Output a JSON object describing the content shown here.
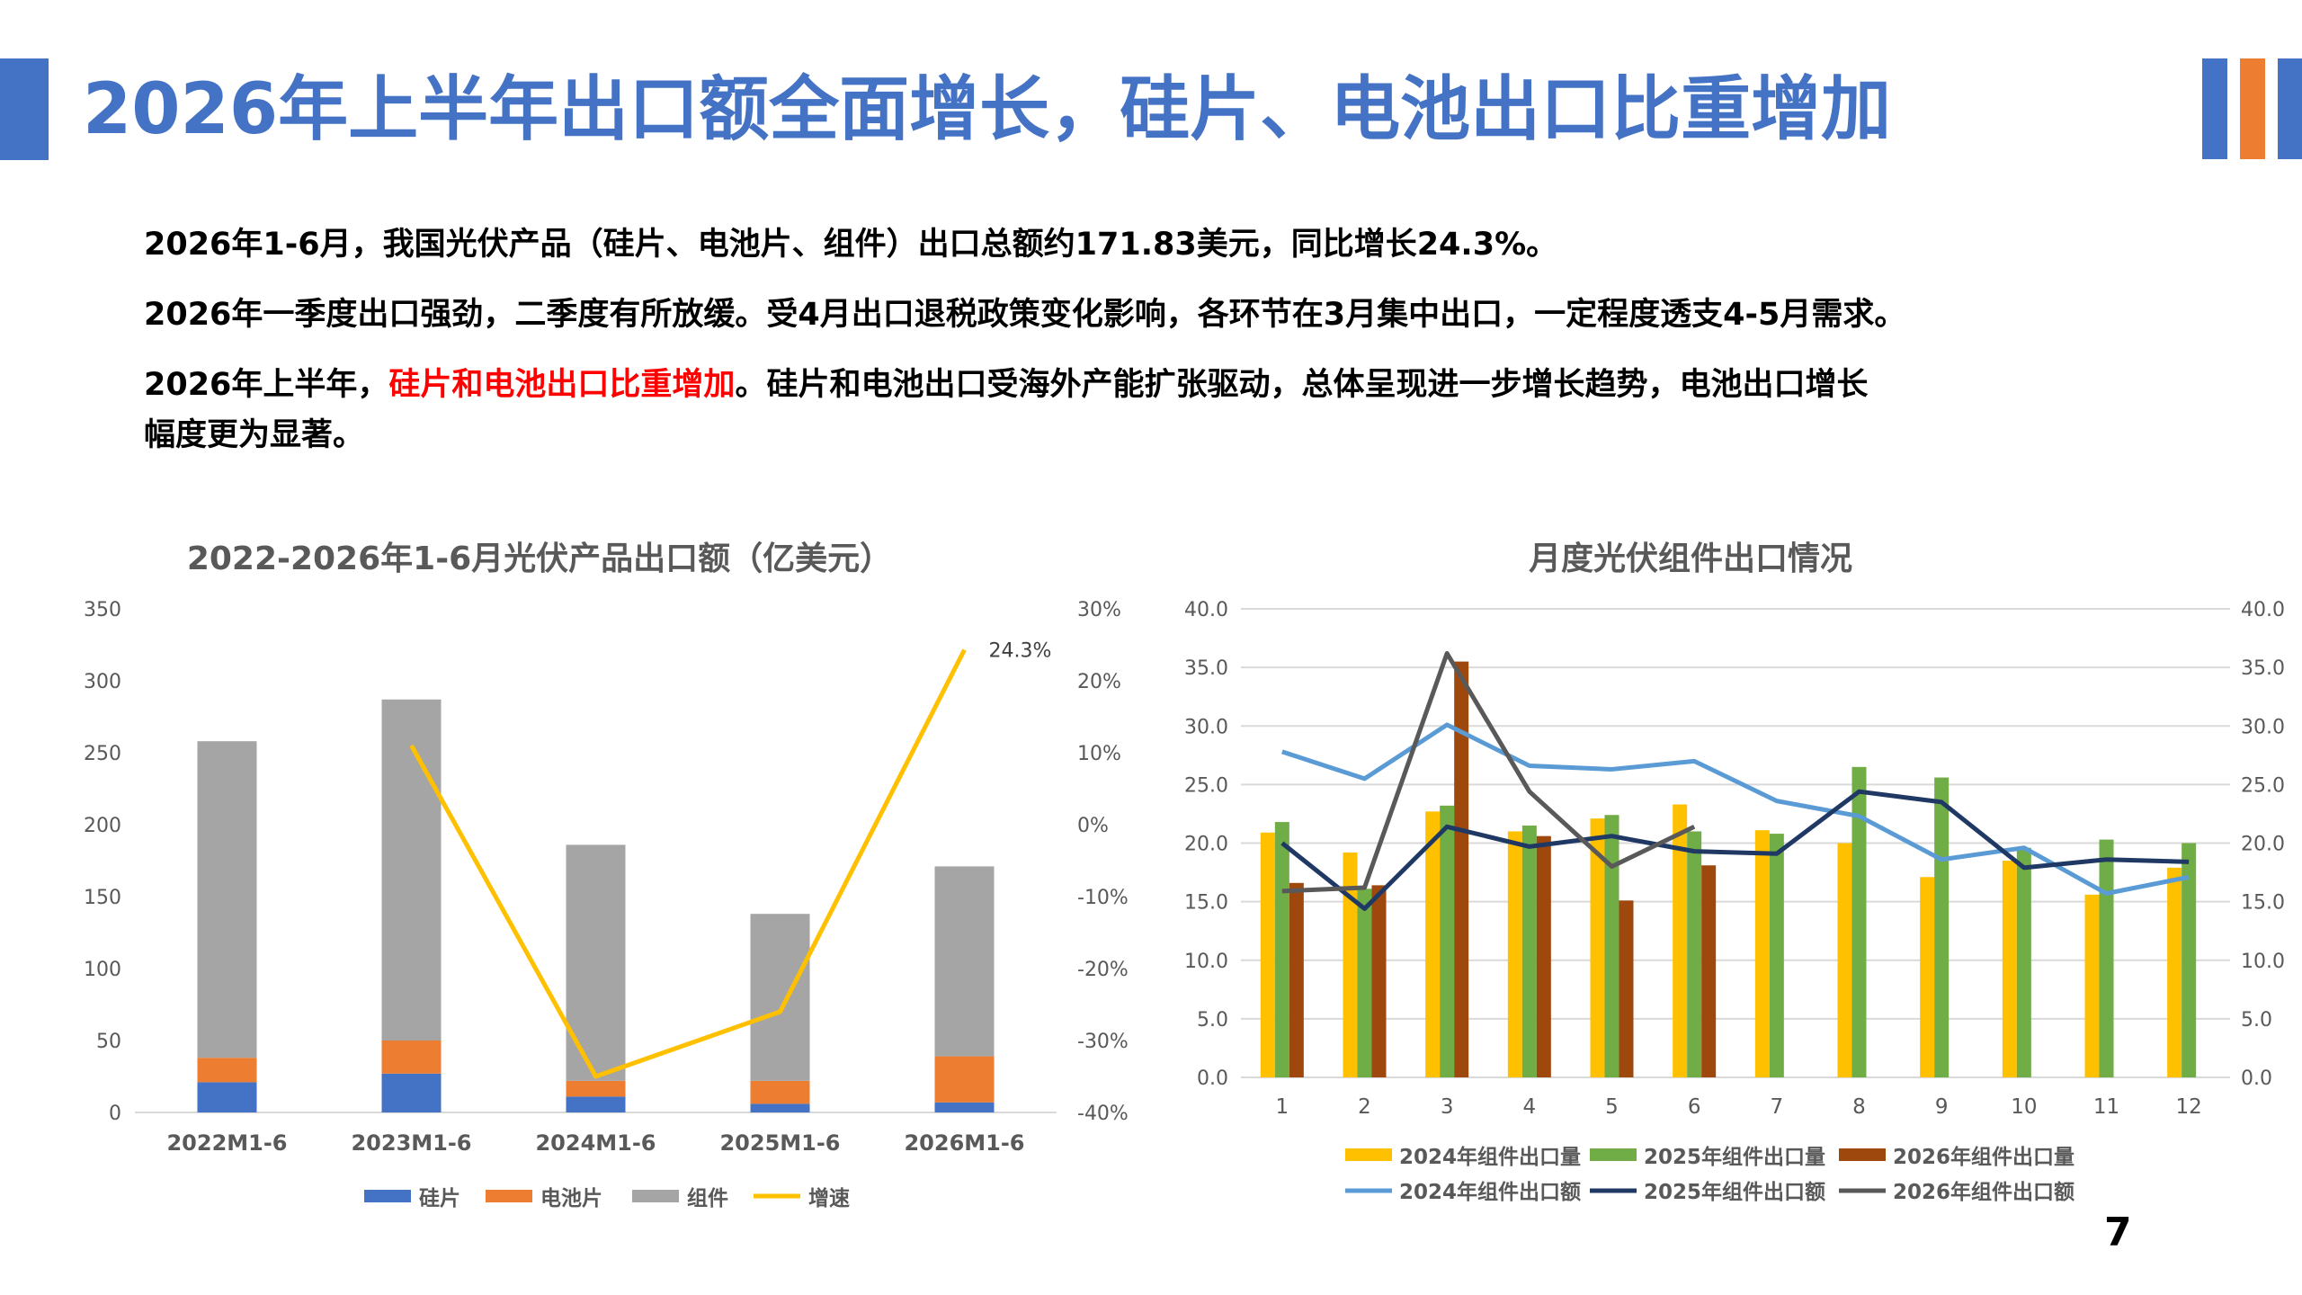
{
  "title": "2026年上半年出口额全面增长，硅片、电池出口比重增加",
  "colors": {
    "accent_blue": "#4472C4",
    "accent_orange": "#ED7D31",
    "highlight_red": "#FF0000"
  },
  "paragraphs": {
    "p1": "2026年1-6月，我国光伏产品（硅片、电池片、组件）出口总额约171.83美元，同比增长24.3%。",
    "p2": "2026年一季度出口强劲，二季度有所放缓。受4月出口退税政策变化影响，各环节在3月集中出口，一定程度透支4-5月需求。",
    "p3_prefix": "2026年上半年，",
    "p3_highlight": "硅片和电池出口比重增加",
    "p3_suffix": "。硅片和电池出口受海外产能扩张驱动，总体呈现进一步增长趋势，电池出口增长",
    "p3_line2": "幅度更为显著。"
  },
  "page_number": "7",
  "chart_data": [
    {
      "type": "bar",
      "stacked": true,
      "title": "2022-2026年1-6月光伏产品出口额（亿美元）",
      "categories": [
        "2022M1-6",
        "2023M1-6",
        "2024M1-6",
        "2025M1-6",
        "2026M1-6"
      ],
      "series": [
        {
          "name": "硅片",
          "color": "#4472C4",
          "values": [
            21,
            27,
            11,
            6,
            7
          ]
        },
        {
          "name": "电池片",
          "color": "#ED7D31",
          "values": [
            17,
            23,
            11,
            16,
            32
          ]
        },
        {
          "name": "组件",
          "color": "#A5A5A5",
          "values": [
            220,
            237,
            164,
            116,
            132
          ]
        }
      ],
      "line_series": {
        "name": "增速",
        "color": "#FFC000",
        "axis": "right",
        "values": [
          null,
          11,
          -35,
          -26,
          24.3
        ],
        "label": "24.3%"
      },
      "ylim": [
        0,
        350
      ],
      "yticks": [
        0,
        50,
        100,
        150,
        200,
        250,
        300,
        350
      ],
      "y2lim": [
        -40,
        30
      ],
      "y2ticks": [
        "30%",
        "20%",
        "10%",
        "0%",
        "-10%",
        "-20%",
        "-30%",
        "-40%"
      ],
      "legend": "bottom"
    },
    {
      "type": "bar",
      "title": "月度光伏组件出口情况",
      "categories": [
        "1",
        "2",
        "3",
        "4",
        "5",
        "6",
        "7",
        "8",
        "9",
        "10",
        "11",
        "12"
      ],
      "series": [
        {
          "name": "2024年组件出口量",
          "color": "#FFC000",
          "values": [
            20.9,
            19.2,
            22.7,
            21.0,
            22.1,
            23.3,
            21.1,
            20.0,
            17.1,
            18.5,
            15.6,
            17.9
          ]
        },
        {
          "name": "2025年组件出口量",
          "color": "#70AD47",
          "values": [
            21.8,
            16.1,
            23.2,
            21.5,
            22.4,
            21.0,
            20.8,
            26.5,
            25.6,
            19.6,
            20.3,
            20.0
          ]
        },
        {
          "name": "2026年组件出口量",
          "color": "#9E480E",
          "values": [
            16.6,
            16.4,
            35.5,
            20.6,
            15.1,
            18.1,
            null,
            null,
            null,
            null,
            null,
            null
          ]
        }
      ],
      "line_series": [
        {
          "name": "2024年组件出口额",
          "color": "#5B9BD5",
          "values": [
            27.8,
            25.5,
            30.1,
            26.6,
            26.3,
            27.0,
            23.6,
            22.3,
            18.6,
            19.6,
            15.7,
            17.1
          ]
        },
        {
          "name": "2025年组件出口额",
          "color": "#203864",
          "values": [
            20.0,
            14.4,
            21.4,
            19.7,
            20.6,
            19.3,
            19.1,
            24.4,
            23.5,
            17.9,
            18.6,
            18.4
          ]
        },
        {
          "name": "2026年组件出口额",
          "color": "#595959",
          "values": [
            15.9,
            16.2,
            36.2,
            24.4,
            18.0,
            21.4,
            null,
            null,
            null,
            null,
            null,
            null
          ]
        }
      ],
      "ylim": [
        0,
        40
      ],
      "yticks": [
        "0.0",
        "5.0",
        "10.0",
        "15.0",
        "20.0",
        "25.0",
        "30.0",
        "35.0",
        "40.0"
      ],
      "legend": "bottom"
    }
  ]
}
